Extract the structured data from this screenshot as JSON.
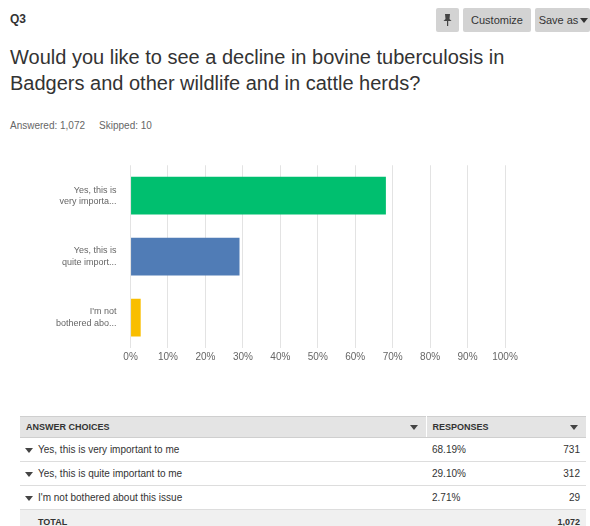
{
  "header": {
    "label": "Q3",
    "buttons": [
      "Customize",
      "Save as"
    ]
  },
  "summary": [
    "Answered: 1,072",
    "Skipped: 10"
  ],
  "chart_data": {
    "type": "bar",
    "title": "Would you like to see a decline in bovine tuberculosis in Badgers and other wildlife and in cattle herds?",
    "orientation": "horizontal",
    "categories": [
      [
        "Yes, this is",
        "very importa..."
      ],
      [
        "Yes, this is",
        "quite import..."
      ],
      [
        "I'm not",
        "bothered abo..."
      ]
    ],
    "values": [
      68.19,
      29.1,
      2.71
    ],
    "colors": [
      "#00bf6f",
      "#507cb6",
      "#f9be00"
    ],
    "xlim": [
      0,
      100
    ],
    "xticks": [
      {
        "value": 0,
        "label": "0%"
      },
      {
        "value": 10,
        "label": "10%"
      },
      {
        "value": 20,
        "label": "20%"
      },
      {
        "value": 30,
        "label": "30%"
      },
      {
        "value": 40,
        "label": "40%"
      },
      {
        "value": 50,
        "label": "50%"
      },
      {
        "value": 60,
        "label": "60%"
      },
      {
        "value": 70,
        "label": "70%"
      },
      {
        "value": 80,
        "label": "80%"
      },
      {
        "value": 90,
        "label": "90%"
      },
      {
        "value": 100,
        "label": "100%"
      }
    ],
    "grid": true
  },
  "table": {
    "columns": [
      "ANSWER CHOICES",
      "RESPONSES"
    ],
    "rows": [
      [
        "Yes, this is very important to me",
        "68.19%",
        "731"
      ],
      [
        "Yes, this is quite important to me",
        "29.10%",
        "312"
      ],
      [
        "I'm not bothered about this issue",
        "2.71%",
        "29"
      ]
    ],
    "total": [
      "TOTAL",
      "1,072"
    ]
  }
}
